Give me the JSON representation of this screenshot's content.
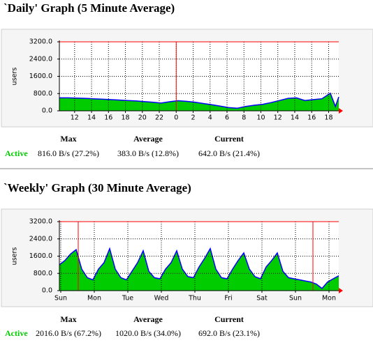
{
  "chart_data": [
    {
      "type": "area",
      "title": "`Daily' Graph (5 Minute Average)",
      "ylabel": "users",
      "ylim": [
        0,
        3200
      ],
      "yticks": [
        {
          "value": 0,
          "label": "0.0"
        },
        {
          "value": 800,
          "label": "800.0"
        },
        {
          "value": 1600,
          "label": "1600.0"
        },
        {
          "value": 2400,
          "label": "2400.0"
        },
        {
          "value": 3200,
          "label": "3200.0"
        }
      ],
      "xlim": [
        0,
        33
      ],
      "xticks": [
        {
          "value": 1.8,
          "label": "12"
        },
        {
          "value": 3.8,
          "label": "14"
        },
        {
          "value": 5.8,
          "label": "16"
        },
        {
          "value": 7.8,
          "label": "18"
        },
        {
          "value": 9.8,
          "label": "20"
        },
        {
          "value": 11.8,
          "label": "22"
        },
        {
          "value": 13.8,
          "label": "0"
        },
        {
          "value": 15.8,
          "label": "2"
        },
        {
          "value": 17.8,
          "label": "4"
        },
        {
          "value": 19.8,
          "label": "6"
        },
        {
          "value": 21.8,
          "label": "8"
        },
        {
          "value": 23.8,
          "label": "10"
        },
        {
          "value": 25.8,
          "label": "12"
        },
        {
          "value": 27.8,
          "label": "14"
        },
        {
          "value": 29.8,
          "label": "16"
        },
        {
          "value": 31.8,
          "label": "18"
        }
      ],
      "vlines": [
        13.8
      ],
      "vline_color": "#ff0000",
      "grid": true,
      "series": [
        {
          "color": "#00cc00",
          "line_color": "#0000ff",
          "x": [
            0,
            1,
            2,
            3,
            4,
            5,
            6,
            7,
            8,
            9,
            10,
            11,
            12,
            13,
            14,
            15,
            16,
            17,
            18,
            19,
            20,
            21,
            22,
            23,
            24,
            25,
            26,
            27,
            28,
            29,
            30,
            31,
            32,
            32.6,
            33
          ],
          "values": [
            600,
            600,
            590,
            580,
            560,
            540,
            520,
            500,
            480,
            460,
            430,
            400,
            360,
            420,
            470,
            440,
            400,
            340,
            280,
            220,
            150,
            120,
            200,
            260,
            300,
            380,
            480,
            580,
            600,
            480,
            520,
            560,
            816,
            200,
            642
          ]
        }
      ],
      "stats": {
        "headers": [
          "Max",
          "Average",
          "Current"
        ],
        "label": "Active",
        "values": [
          "816.0 B/s (27.2%)",
          "383.0 B/s (12.8%)",
          "642.0 B/s (21.4%)"
        ]
      }
    },
    {
      "type": "area",
      "title": "`Weekly' Graph (30 Minute Average)",
      "ylabel": "users",
      "ylim": [
        0,
        3200
      ],
      "yticks": [
        {
          "value": 0,
          "label": "0.0"
        },
        {
          "value": 800,
          "label": "800.0"
        },
        {
          "value": 1600,
          "label": "1600.0"
        },
        {
          "value": 2400,
          "label": "2400.0"
        },
        {
          "value": 3200,
          "label": "3200.0"
        }
      ],
      "xlim": [
        0,
        200
      ],
      "xticks": [
        {
          "value": 1,
          "label": "Sun"
        },
        {
          "value": 25,
          "label": "Mon"
        },
        {
          "value": 49,
          "label": "Tue"
        },
        {
          "value": 73,
          "label": "Wed"
        },
        {
          "value": 97,
          "label": "Thu"
        },
        {
          "value": 121,
          "label": "Fri"
        },
        {
          "value": 145,
          "label": "Sat"
        },
        {
          "value": 169,
          "label": "Sun"
        },
        {
          "value": 193,
          "label": "Mon"
        }
      ],
      "vlines": [
        13.5,
        181.5
      ],
      "vline_color": "#ff0000",
      "grid": true,
      "series": [
        {
          "color": "#00cc00",
          "line_color": "#0000ff",
          "x": [
            0,
            4,
            8,
            12,
            16,
            20,
            24,
            28,
            32,
            36,
            40,
            44,
            48,
            52,
            56,
            60,
            64,
            68,
            72,
            76,
            80,
            84,
            88,
            92,
            96,
            100,
            104,
            108,
            112,
            116,
            120,
            124,
            128,
            132,
            136,
            140,
            144,
            148,
            152,
            156,
            160,
            164,
            168,
            172,
            176,
            180,
            184,
            188,
            192,
            196,
            200
          ],
          "values": [
            1200,
            1400,
            1700,
            1900,
            1000,
            600,
            500,
            1000,
            1300,
            1950,
            1000,
            600,
            500,
            900,
            1300,
            1850,
            900,
            600,
            550,
            1000,
            1300,
            1850,
            1000,
            650,
            600,
            1100,
            1500,
            1950,
            1000,
            600,
            550,
            1000,
            1400,
            1750,
            1000,
            650,
            550,
            1100,
            1400,
            1750,
            900,
            600,
            550,
            500,
            450,
            400,
            300,
            100,
            400,
            550,
            692
          ]
        }
      ],
      "stats": {
        "headers": [
          "Max",
          "Average",
          "Current"
        ],
        "label": "Active",
        "values": [
          "2016.0 B/s (67.2%)",
          "1020.0 B/s (34.0%)",
          "692.0 B/s (23.1%)"
        ]
      }
    }
  ]
}
